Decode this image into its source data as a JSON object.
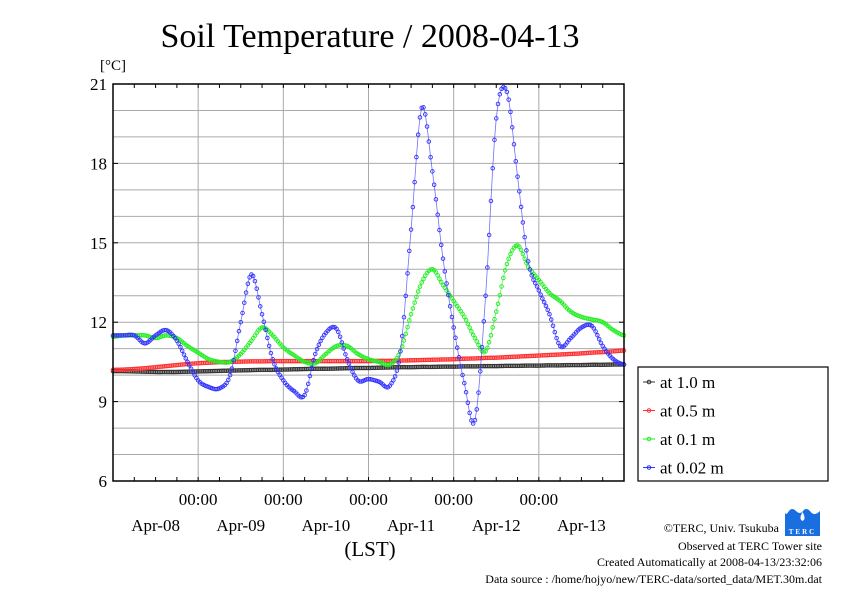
{
  "chart_data": {
    "type": "line",
    "title": "Soil Temperature / 2008-04-13",
    "ylabel": "[°C]",
    "xlabel": "(LST)",
    "ylim": [
      6,
      21
    ],
    "yticks": [
      6,
      9,
      12,
      15,
      18,
      21
    ],
    "y_grid_step": 1,
    "x_range_hours": [
      0,
      144
    ],
    "x_step_hours": 3,
    "time_tick_label": "00:00",
    "time_tick_hours": [
      24,
      48,
      72,
      96,
      120
    ],
    "date_labels": [
      "Apr-08",
      "Apr-09",
      "Apr-10",
      "Apr-11",
      "Apr-12",
      "Apr-13"
    ],
    "legend_position": "right",
    "series": [
      {
        "name": "at 1.0 m",
        "color": "#333333",
        "values": [
          10.15,
          10.15,
          10.14,
          10.13,
          10.12,
          10.12,
          10.12,
          10.13,
          10.14,
          10.15,
          10.16,
          10.17,
          10.18,
          10.19,
          10.2,
          10.2,
          10.21,
          10.22,
          10.23,
          10.24,
          10.24,
          10.25,
          10.26,
          10.27,
          10.27,
          10.28,
          10.29,
          10.3,
          10.3,
          10.31,
          10.31,
          10.32,
          10.32,
          10.33,
          10.33,
          10.34,
          10.34,
          10.35,
          10.35,
          10.36,
          10.36,
          10.37,
          10.37,
          10.38,
          10.38,
          10.39,
          10.39,
          10.4,
          10.4
        ]
      },
      {
        "name": "at 0.5 m",
        "color": "#ff3030",
        "values": [
          10.2,
          10.21,
          10.23,
          10.26,
          10.3,
          10.34,
          10.38,
          10.42,
          10.45,
          10.47,
          10.49,
          10.5,
          10.51,
          10.52,
          10.52,
          10.53,
          10.53,
          10.53,
          10.53,
          10.53,
          10.53,
          10.53,
          10.53,
          10.53,
          10.53,
          10.54,
          10.54,
          10.55,
          10.56,
          10.57,
          10.58,
          10.59,
          10.6,
          10.62,
          10.63,
          10.65,
          10.66,
          10.68,
          10.7,
          10.72,
          10.74,
          10.76,
          10.78,
          10.8,
          10.82,
          10.85,
          10.87,
          10.9,
          10.93
        ]
      },
      {
        "name": "at 0.1 m",
        "color": "#22ee22",
        "values": [
          11.45,
          11.5,
          11.5,
          11.5,
          11.4,
          11.5,
          11.4,
          11.1,
          10.85,
          10.6,
          10.5,
          10.5,
          10.8,
          11.3,
          11.8,
          11.5,
          11.05,
          10.75,
          10.5,
          10.45,
          10.8,
          11.1,
          11.1,
          10.8,
          10.6,
          10.5,
          10.4,
          10.9,
          12.3,
          13.5,
          14.0,
          13.4,
          12.8,
          12.2,
          11.4,
          10.9,
          12.4,
          14.2,
          14.9,
          14.1,
          13.6,
          13.1,
          12.8,
          12.4,
          12.2,
          12.1,
          12.0,
          11.7,
          11.5
        ]
      },
      {
        "name": "at 0.02 m",
        "color": "#3333ff",
        "values": [
          11.5,
          11.5,
          11.5,
          11.2,
          11.5,
          11.7,
          11.3,
          10.5,
          9.8,
          9.55,
          9.5,
          10.0,
          12.0,
          13.8,
          12.3,
          10.6,
          9.8,
          9.4,
          9.25,
          10.8,
          11.6,
          11.75,
          10.6,
          9.8,
          9.85,
          9.75,
          9.6,
          10.9,
          15.5,
          20.1,
          17.7,
          14.4,
          11.8,
          9.7,
          8.3,
          13.0,
          19.7,
          20.7,
          17.5,
          14.3,
          13.2,
          12.3,
          11.1,
          11.4,
          11.8,
          11.85,
          11.1,
          10.6,
          10.4
        ]
      }
    ]
  },
  "footer": {
    "copyright": "©TERC, Univ. Tsukuba",
    "site": "Observed at TERC Tower site",
    "created": "Created Automatically at 2008-04-13/23:32:06",
    "source": "Data source : /home/hojyo/new/TERC-data/sorted_data/MET.30m.dat",
    "logo_text": "TERC"
  }
}
